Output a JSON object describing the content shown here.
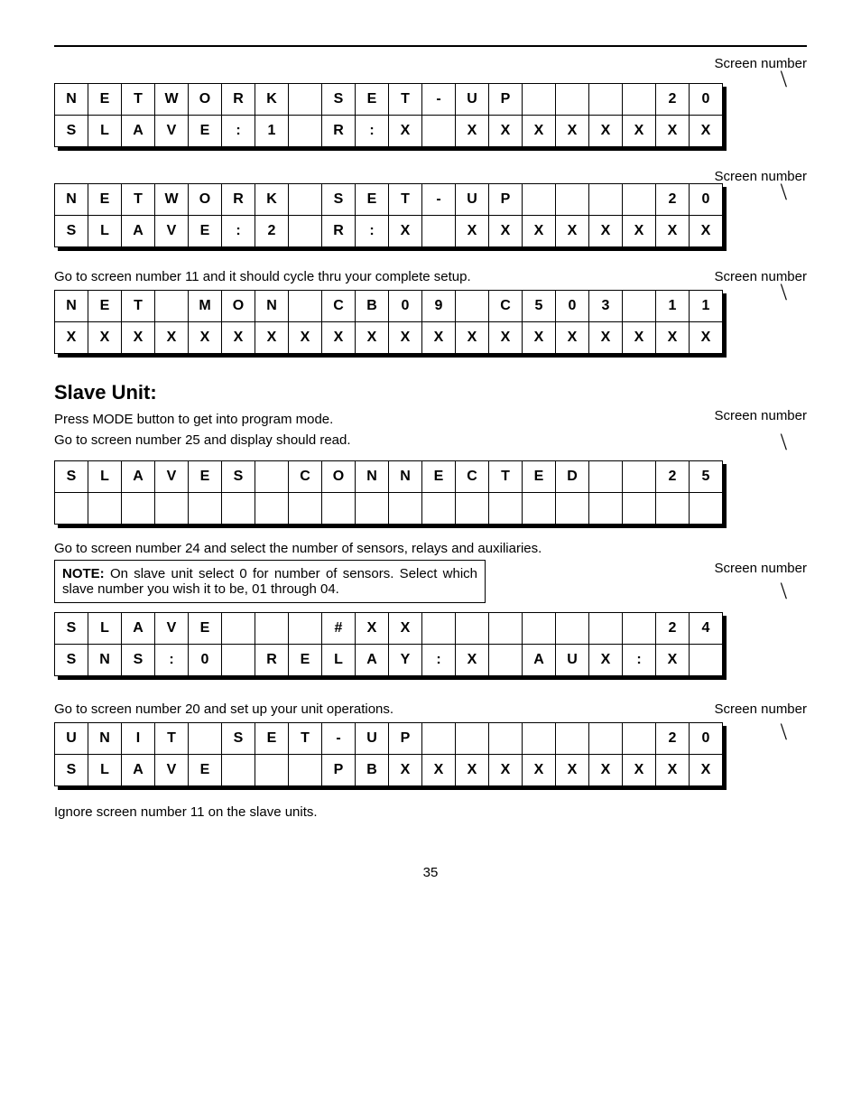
{
  "labels": {
    "screen_number": "Screen number",
    "page_number": "35"
  },
  "sections": {
    "s1": {
      "table": {
        "cols": 20,
        "rows": [
          [
            "N",
            "E",
            "T",
            "W",
            "O",
            "R",
            "K",
            "",
            "S",
            "E",
            "T",
            "-",
            "U",
            "P",
            "",
            "",
            "",
            "",
            "2",
            "0"
          ],
          [
            "S",
            "L",
            "A",
            "V",
            "E",
            ":",
            "1",
            "",
            "R",
            ":",
            "X",
            "",
            "X",
            "X",
            "X",
            "X",
            "X",
            "X",
            "X",
            "X"
          ]
        ]
      }
    },
    "s2": {
      "table": {
        "cols": 20,
        "rows": [
          [
            "N",
            "E",
            "T",
            "W",
            "O",
            "R",
            "K",
            "",
            "S",
            "E",
            "T",
            "-",
            "U",
            "P",
            "",
            "",
            "",
            "",
            "2",
            "0"
          ],
          [
            "S",
            "L",
            "A",
            "V",
            "E",
            ":",
            "2",
            "",
            "R",
            ":",
            "X",
            "",
            "X",
            "X",
            "X",
            "X",
            "X",
            "X",
            "X",
            "X"
          ]
        ]
      }
    },
    "s3": {
      "caption": "Go to screen number 11 and it should cycle thru your complete setup.",
      "table": {
        "cols": 20,
        "rows": [
          [
            "N",
            "E",
            "T",
            "",
            "M",
            "O",
            "N",
            "",
            "C",
            "B",
            "0",
            "9",
            "",
            "C",
            "5",
            "0",
            "3",
            "",
            "1",
            "1"
          ],
          [
            "X",
            "X",
            "X",
            "X",
            "X",
            "X",
            "X",
            "X",
            "X",
            "X",
            "X",
            "X",
            "X",
            "X",
            "X",
            "X",
            "X",
            "X",
            "X",
            "X"
          ]
        ]
      }
    },
    "s4": {
      "heading": "Slave Unit:",
      "p1": "Press MODE button to get into program mode.",
      "p2": "Go to screen number 25 and display should read.",
      "table": {
        "cols": 20,
        "rows": [
          [
            "S",
            "L",
            "A",
            "V",
            "E",
            "S",
            "",
            "C",
            "O",
            "N",
            "N",
            "E",
            "C",
            "T",
            "E",
            "D",
            "",
            "",
            "2",
            "5"
          ],
          [
            "",
            "",
            "",
            "",
            "",
            "",
            "",
            "",
            "",
            "",
            "",
            "",
            "",
            "",
            "",
            "",
            "",
            "",
            "",
            ""
          ]
        ]
      }
    },
    "s5": {
      "caption": "Go to screen number 24 and select the number of sensors, relays and auxiliaries.",
      "note_label": "NOTE:",
      "note_text": " On slave unit select 0 for number of sensors. Select which slave number you wish it to be, 01 through 04.",
      "table": {
        "cols": 20,
        "rows": [
          [
            "S",
            "L",
            "A",
            "V",
            "E",
            "",
            "",
            "",
            "#",
            "X",
            "X",
            "",
            "",
            "",
            "",
            "",
            "",
            "",
            "2",
            "4"
          ],
          [
            "S",
            "N",
            "S",
            ":",
            "0",
            "",
            "R",
            "E",
            "L",
            "A",
            "Y",
            ":",
            "X",
            "",
            "A",
            "U",
            "X",
            ":",
            "X",
            ""
          ]
        ]
      }
    },
    "s6": {
      "caption": "Go to screen number 20 and set up your unit operations.",
      "table": {
        "cols": 20,
        "rows": [
          [
            "U",
            "N",
            "I",
            "T",
            "",
            "S",
            "E",
            "T",
            "-",
            "U",
            "P",
            "",
            "",
            "",
            "",
            "",
            "",
            "",
            "2",
            "0"
          ],
          [
            "S",
            "L",
            "A",
            "V",
            "E",
            "",
            "",
            "",
            "P",
            "B",
            "X",
            "X",
            "X",
            "X",
            "X",
            "X",
            "X",
            "X",
            "X",
            "X"
          ]
        ]
      }
    },
    "final_note": "Ignore screen number 11 on the slave units."
  }
}
